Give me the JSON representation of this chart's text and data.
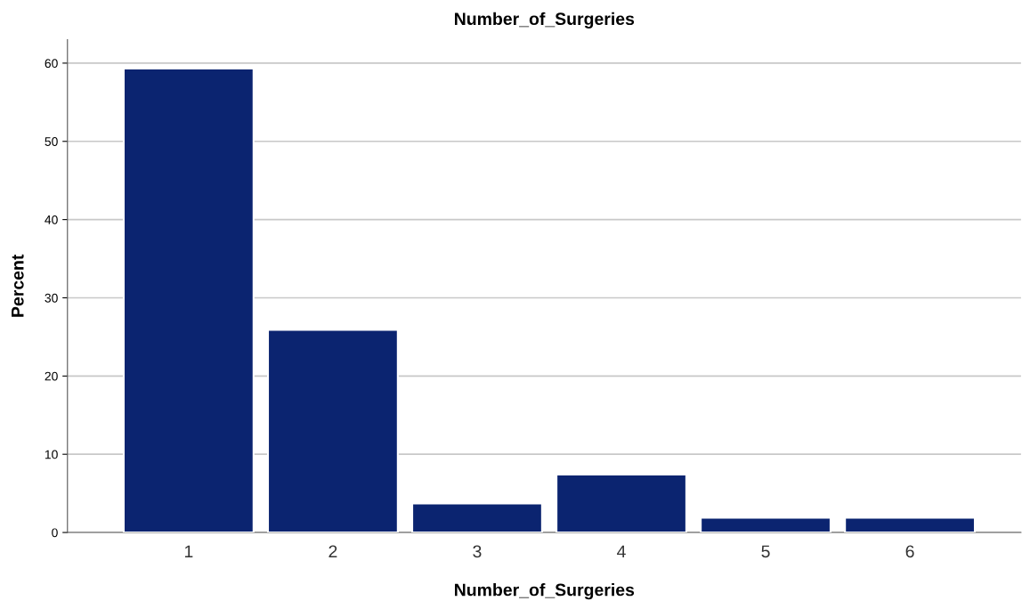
{
  "chart_data": {
    "type": "bar",
    "title": "Number_of_Surgeries",
    "xlabel": "Number_of_Surgeries",
    "ylabel": "Percent",
    "categories": [
      "1",
      "2",
      "3",
      "4",
      "5",
      "6"
    ],
    "values": [
      59.3,
      25.9,
      3.7,
      7.4,
      1.9,
      1.9
    ],
    "color": "#0b2470",
    "ylim": [
      0,
      63
    ],
    "yticks": [
      0,
      10,
      20,
      30,
      40,
      50,
      60
    ],
    "grid": "y",
    "legend": false
  }
}
